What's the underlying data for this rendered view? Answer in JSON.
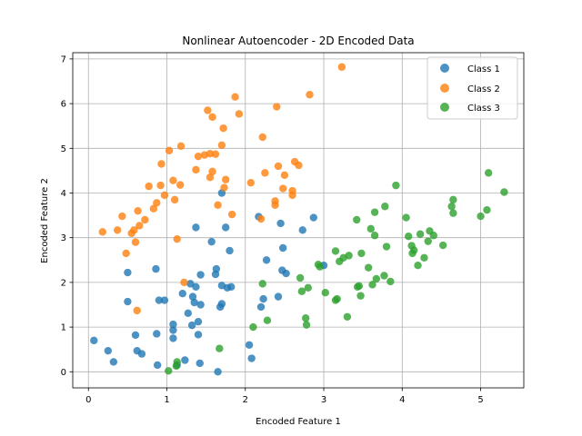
{
  "chart_data": {
    "type": "scatter",
    "title": "Nonlinear Autoencoder - 2D Encoded Data",
    "xlabel": "Encoded Feature 1",
    "ylabel": "Encoded Feature 2",
    "xlim": [
      -0.2,
      5.55
    ],
    "ylim": [
      -0.36,
      7.14
    ],
    "xticks": [
      0,
      1,
      2,
      3,
      4,
      5
    ],
    "yticks": [
      0,
      1,
      2,
      3,
      4,
      5,
      6,
      7
    ],
    "grid": true,
    "legend_position": "top-right",
    "series": [
      {
        "name": "Class 1",
        "color": "#1f77b4",
        "points": [
          [
            0.07,
            0.7
          ],
          [
            0.25,
            0.47
          ],
          [
            0.32,
            0.22
          ],
          [
            0.5,
            2.22
          ],
          [
            0.5,
            1.57
          ],
          [
            0.6,
            0.82
          ],
          [
            0.62,
            0.47
          ],
          [
            0.68,
            0.4
          ],
          [
            0.86,
            2.3
          ],
          [
            0.87,
            0.85
          ],
          [
            0.88,
            0.15
          ],
          [
            0.9,
            1.6
          ],
          [
            0.97,
            1.6
          ],
          [
            1.08,
            1.06
          ],
          [
            1.08,
            0.93
          ],
          [
            1.08,
            0.75
          ],
          [
            1.13,
            0.15
          ],
          [
            1.2,
            1.75
          ],
          [
            1.23,
            0.26
          ],
          [
            1.27,
            1.31
          ],
          [
            1.3,
            1.97
          ],
          [
            1.32,
            1.04
          ],
          [
            1.33,
            1.68
          ],
          [
            1.35,
            1.55
          ],
          [
            1.37,
            1.9
          ],
          [
            1.37,
            3.23
          ],
          [
            1.4,
            1.12
          ],
          [
            1.4,
            0.83
          ],
          [
            1.42,
            0.19
          ],
          [
            1.43,
            1.5
          ],
          [
            1.43,
            2.17
          ],
          [
            1.57,
            2.91
          ],
          [
            1.62,
            2.18
          ],
          [
            1.63,
            2.3
          ],
          [
            1.65,
            0.0
          ],
          [
            1.68,
            1.45
          ],
          [
            1.7,
            1.52
          ],
          [
            1.7,
            1.93
          ],
          [
            1.7,
            4.0
          ],
          [
            1.75,
            3.23
          ],
          [
            1.77,
            1.88
          ],
          [
            1.8,
            2.71
          ],
          [
            1.82,
            1.9
          ],
          [
            2.05,
            0.6
          ],
          [
            2.08,
            0.3
          ],
          [
            2.17,
            3.47
          ],
          [
            2.2,
            1.45
          ],
          [
            2.23,
            1.63
          ],
          [
            2.27,
            2.5
          ],
          [
            2.42,
            1.68
          ],
          [
            2.45,
            3.32
          ],
          [
            2.47,
            2.27
          ],
          [
            2.48,
            2.77
          ],
          [
            2.52,
            2.2
          ],
          [
            2.73,
            3.17
          ],
          [
            2.87,
            3.45
          ],
          [
            3.0,
            2.38
          ]
        ]
      },
      {
        "name": "Class 2",
        "color": "#ff7f0e",
        "points": [
          [
            0.18,
            3.13
          ],
          [
            0.37,
            3.17
          ],
          [
            0.43,
            3.48
          ],
          [
            0.48,
            2.65
          ],
          [
            0.55,
            3.1
          ],
          [
            0.58,
            3.17
          ],
          [
            0.6,
            2.9
          ],
          [
            0.62,
            1.37
          ],
          [
            0.63,
            3.6
          ],
          [
            0.65,
            3.27
          ],
          [
            0.72,
            3.4
          ],
          [
            0.77,
            4.15
          ],
          [
            0.83,
            3.65
          ],
          [
            0.87,
            3.78
          ],
          [
            0.92,
            4.17
          ],
          [
            0.93,
            4.65
          ],
          [
            0.97,
            3.95
          ],
          [
            1.03,
            4.95
          ],
          [
            1.08,
            4.28
          ],
          [
            1.1,
            3.85
          ],
          [
            1.13,
            2.97
          ],
          [
            1.17,
            4.18
          ],
          [
            1.18,
            5.05
          ],
          [
            1.22,
            2.0
          ],
          [
            1.37,
            4.52
          ],
          [
            1.4,
            4.82
          ],
          [
            1.48,
            4.85
          ],
          [
            1.52,
            5.85
          ],
          [
            1.55,
            4.88
          ],
          [
            1.55,
            4.35
          ],
          [
            1.58,
            5.7
          ],
          [
            1.58,
            4.48
          ],
          [
            1.62,
            4.87
          ],
          [
            1.65,
            3.73
          ],
          [
            1.7,
            5.07
          ],
          [
            1.72,
            5.45
          ],
          [
            1.73,
            4.12
          ],
          [
            1.75,
            4.3
          ],
          [
            1.83,
            3.52
          ],
          [
            1.87,
            6.15
          ],
          [
            1.92,
            5.77
          ],
          [
            2.07,
            4.23
          ],
          [
            2.2,
            3.42
          ],
          [
            2.22,
            5.25
          ],
          [
            2.25,
            4.45
          ],
          [
            2.38,
            3.73
          ],
          [
            2.38,
            3.82
          ],
          [
            2.4,
            5.93
          ],
          [
            2.42,
            4.6
          ],
          [
            2.48,
            4.1
          ],
          [
            2.5,
            4.4
          ],
          [
            2.6,
            4.05
          ],
          [
            2.6,
            3.95
          ],
          [
            2.63,
            4.7
          ],
          [
            2.68,
            4.62
          ],
          [
            2.82,
            6.2
          ],
          [
            3.23,
            6.82
          ]
        ]
      },
      {
        "name": "Class 3",
        "color": "#2ca02c",
        "points": [
          [
            1.02,
            0.02
          ],
          [
            1.12,
            0.13
          ],
          [
            1.13,
            0.22
          ],
          [
            1.67,
            0.52
          ],
          [
            2.1,
            1.0
          ],
          [
            2.22,
            1.97
          ],
          [
            2.28,
            1.15
          ],
          [
            2.7,
            2.1
          ],
          [
            2.72,
            1.8
          ],
          [
            2.77,
            1.2
          ],
          [
            2.78,
            1.05
          ],
          [
            2.8,
            1.88
          ],
          [
            2.93,
            2.4
          ],
          [
            2.95,
            2.35
          ],
          [
            3.02,
            1.77
          ],
          [
            3.15,
            1.6
          ],
          [
            3.15,
            2.7
          ],
          [
            3.17,
            1.63
          ],
          [
            3.2,
            2.47
          ],
          [
            3.25,
            2.55
          ],
          [
            3.3,
            1.23
          ],
          [
            3.32,
            2.6
          ],
          [
            3.42,
            3.4
          ],
          [
            3.43,
            1.9
          ],
          [
            3.45,
            1.92
          ],
          [
            3.47,
            1.7
          ],
          [
            3.48,
            2.65
          ],
          [
            3.57,
            2.33
          ],
          [
            3.6,
            3.2
          ],
          [
            3.62,
            1.95
          ],
          [
            3.65,
            3.05
          ],
          [
            3.65,
            3.57
          ],
          [
            3.67,
            2.08
          ],
          [
            3.77,
            2.15
          ],
          [
            3.78,
            3.7
          ],
          [
            3.8,
            2.8
          ],
          [
            3.85,
            2.02
          ],
          [
            3.92,
            4.17
          ],
          [
            4.05,
            3.45
          ],
          [
            4.08,
            3.03
          ],
          [
            4.12,
            2.82
          ],
          [
            4.13,
            2.65
          ],
          [
            4.15,
            2.72
          ],
          [
            4.2,
            2.38
          ],
          [
            4.23,
            3.08
          ],
          [
            4.28,
            2.55
          ],
          [
            4.33,
            2.92
          ],
          [
            4.35,
            3.15
          ],
          [
            4.4,
            3.05
          ],
          [
            4.52,
            2.83
          ],
          [
            4.63,
            3.7
          ],
          [
            4.65,
            3.55
          ],
          [
            4.65,
            3.85
          ],
          [
            5.0,
            3.48
          ],
          [
            5.08,
            3.62
          ],
          [
            5.1,
            4.45
          ],
          [
            5.3,
            4.02
          ]
        ]
      }
    ]
  }
}
